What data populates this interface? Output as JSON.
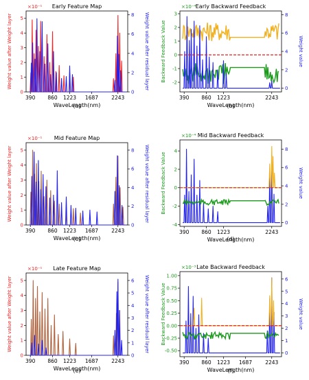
{
  "figure": {
    "captions": [
      "(a)",
      "(b)",
      "(c)",
      "(d)",
      "(e)",
      "(f)"
    ]
  },
  "colors": {
    "red": "#ee2222",
    "blue": "#2222ee",
    "brown": "#b0603a",
    "orange": "#f0b020",
    "green": "#1a9a1a",
    "dashed": "#dd2222",
    "pinkfill": "#f2b8e6",
    "greenfill": "#9fe39f",
    "bluefill": "#6a6af0"
  },
  "chart_data": [
    {
      "type": "line",
      "title": "Early Feature Map",
      "scale_label": "×10⁻¹",
      "xlabel": "WaveLength(nm)",
      "ylabel": "Weight value after Weight layer",
      "ylabel_right": "Weight value after residual layer",
      "xticks": [
        "390",
        "860",
        "1223",
        "1687",
        "2243"
      ],
      "yticks_left": [
        "0",
        "1",
        "2",
        "3",
        "4",
        "5"
      ],
      "yticks_right": [
        "0",
        "2",
        "4",
        "6",
        "8"
      ],
      "ylim": [
        0,
        5.5
      ],
      "ylim_right": [
        0,
        8.4
      ],
      "series": [
        {
          "role": "weight-layer",
          "color_key": "red",
          "style": "line",
          "peaks": [
            [
              400,
              1.3
            ],
            [
              430,
              4.9
            ],
            [
              470,
              2.6
            ],
            [
              510,
              4.2
            ],
            [
              560,
              3.1
            ],
            [
              610,
              4.8
            ],
            [
              680,
              2.4
            ],
            [
              740,
              3.9
            ],
            [
              800,
              2.0
            ],
            [
              860,
              4.1
            ],
            [
              930,
              1.4
            ],
            [
              1000,
              1.8
            ],
            [
              1100,
              1.1
            ],
            [
              1223,
              1.3
            ],
            [
              1300,
              1.0
            ],
            [
              2150,
              0.9
            ],
            [
              2200,
              2.6
            ],
            [
              2243,
              5.2
            ],
            [
              2280,
              4.0
            ],
            [
              2320,
              2.1
            ]
          ]
        },
        {
          "role": "residual-layer",
          "color_key": "blue",
          "style": "line",
          "peaks": [
            [
              410,
              3.0
            ],
            [
              440,
              5.1
            ],
            [
              490,
              3.4
            ],
            [
              530,
              7.6
            ],
            [
              590,
              4.2
            ],
            [
              640,
              7.3
            ],
            [
              700,
              2.9
            ],
            [
              760,
              5.0
            ],
            [
              820,
              1.8
            ],
            [
              880,
              4.2
            ],
            [
              940,
              2.0
            ],
            [
              1050,
              1.4
            ],
            [
              1150,
              1.6
            ],
            [
              1223,
              2.7
            ],
            [
              1280,
              1.8
            ],
            [
              2180,
              1.2
            ],
            [
              2230,
              5.8
            ],
            [
              2260,
              3.9
            ],
            [
              2300,
              2.2
            ]
          ]
        }
      ]
    },
    {
      "type": "line",
      "title": "Early Backward Feedback",
      "scale_label": "×10⁻⁴",
      "xlabel": "WaveLength(nm)",
      "ylabel": "Backward Feedback Value",
      "ylabel_right": "Weight value",
      "xticks": [
        "390",
        "860",
        "1223",
        "2243"
      ],
      "yticks_left": [
        "-2",
        "-1",
        "0",
        "1",
        "2",
        "3"
      ],
      "yticks_right": [
        "0",
        "2",
        "4",
        "6",
        "8"
      ],
      "ylim": [
        -2.7,
        3.2
      ],
      "ylim_right": [
        -0.4,
        8.4
      ],
      "reference_line": 0,
      "series": [
        {
          "role": "positive-feedback",
          "color_key": "orange",
          "style": "band",
          "base": 1.0,
          "amp": 1.4
        },
        {
          "role": "negative-feedback",
          "color_key": "green",
          "style": "band",
          "base": -0.6,
          "amp": -1.6
        },
        {
          "role": "weight",
          "color_key": "blue",
          "style": "line",
          "peaks": [
            [
              400,
              4.0
            ],
            [
              450,
              7.8
            ],
            [
              500,
              5.2
            ],
            [
              540,
              6.4
            ],
            [
              600,
              7.3
            ],
            [
              660,
              4.6
            ],
            [
              720,
              6.8
            ],
            [
              780,
              3.1
            ],
            [
              860,
              5.6
            ],
            [
              920,
              3.4
            ],
            [
              1000,
              2.8
            ],
            [
              1100,
              2.0
            ],
            [
              1223,
              3.0
            ],
            [
              1280,
              1.6
            ],
            [
              2200,
              0.6
            ],
            [
              2243,
              0.8
            ]
          ]
        }
      ]
    },
    {
      "type": "line",
      "title": "Mid Feature Map",
      "scale_label": "×10⁻¹",
      "xlabel": "WaveLength(nm)",
      "ylabel": "Weight value after Weight layer",
      "ylabel_right": "Weight value after residual layer",
      "xticks": [
        "390",
        "860",
        "1223",
        "1687",
        "2243"
      ],
      "yticks_left": [
        "0",
        "1",
        "2",
        "3",
        "4",
        "5"
      ],
      "yticks_right": [
        "0",
        "2",
        "4",
        "6",
        "8"
      ],
      "ylim": [
        0,
        5.5
      ],
      "ylim_right": [
        0,
        8.8
      ],
      "series": [
        {
          "role": "weight-layer",
          "color_key": "brown",
          "style": "line",
          "peaks": [
            [
              400,
              2.2
            ],
            [
              440,
              5.0
            ],
            [
              480,
              3.4
            ],
            [
              520,
              4.1
            ],
            [
              570,
              2.9
            ],
            [
              620,
              3.6
            ],
            [
              680,
              1.9
            ],
            [
              740,
              3.0
            ],
            [
              820,
              2.3
            ],
            [
              900,
              1.6
            ],
            [
              1000,
              1.4
            ],
            [
              1150,
              0.9
            ],
            [
              1300,
              1.1
            ],
            [
              1450,
              0.8
            ],
            [
              2150,
              1.4
            ],
            [
              2200,
              3.2
            ],
            [
              2243,
              4.6
            ],
            [
              2290,
              2.5
            ],
            [
              2350,
              1.2
            ]
          ]
        },
        {
          "role": "residual-layer",
          "color_key": "blue",
          "style": "line",
          "peaks": [
            [
              420,
              5.2
            ],
            [
              470,
              7.8
            ],
            [
              510,
              4.6
            ],
            [
              560,
              6.9
            ],
            [
              610,
              3.8
            ],
            [
              660,
              5.4
            ],
            [
              720,
              4.1
            ],
            [
              800,
              2.9
            ],
            [
              880,
              3.2
            ],
            [
              960,
              5.8
            ],
            [
              1050,
              2.4
            ],
            [
              1150,
              3.0
            ],
            [
              1250,
              2.1
            ],
            [
              1350,
              1.8
            ],
            [
              1500,
              1.5
            ],
            [
              1650,
              1.6
            ],
            [
              1800,
              1.4
            ],
            [
              2180,
              3.6
            ],
            [
              2230,
              7.4
            ],
            [
              2270,
              4.2
            ],
            [
              2330,
              2.1
            ]
          ]
        }
      ]
    },
    {
      "type": "line",
      "title": "Mid Backward Feedback",
      "scale_label": "×10⁻⁴",
      "xlabel": "WaveLength(nm)",
      "ylabel": "Backward Feedback Value",
      "ylabel_right": "Weight value",
      "xticks": [
        "390",
        "860",
        "1223",
        "2243"
      ],
      "yticks_left": [
        "-4",
        "-2",
        "0",
        "2",
        "4"
      ],
      "yticks_right": [
        "0",
        "2",
        "4",
        "6",
        "8"
      ],
      "ylim": [
        -4.2,
        5.2
      ],
      "ylim_right": [
        -0.4,
        9.0
      ],
      "reference_line": 0,
      "series": [
        {
          "role": "weight",
          "color_key": "blue",
          "style": "line",
          "peaks": [
            [
              400,
              3.0
            ],
            [
              440,
              8.0
            ],
            [
              490,
              3.4
            ],
            [
              540,
              5.2
            ],
            [
              600,
              6.9
            ],
            [
              660,
              3.0
            ],
            [
              720,
              4.6
            ],
            [
              800,
              2.2
            ],
            [
              900,
              1.5
            ],
            [
              1000,
              1.8
            ],
            [
              1100,
              1.2
            ],
            [
              2160,
              1.8
            ],
            [
              2200,
              5.5
            ],
            [
              2243,
              6.6
            ],
            [
              2290,
              3.1
            ]
          ]
        },
        {
          "role": "positive-feedback",
          "color_key": "orange",
          "style": "spikes",
          "peaks": [
            [
              2200,
              2.6
            ],
            [
              2243,
              4.5
            ],
            [
              2270,
              3.4
            ],
            [
              2300,
              1.6
            ]
          ]
        },
        {
          "role": "negative-feedback",
          "color_key": "green",
          "style": "band",
          "base": -1.3,
          "amp": -0.6
        }
      ]
    },
    {
      "type": "line",
      "title": "Late Feature Map",
      "scale_label": "×10⁻¹",
      "xlabel": "WaveLength(nm)",
      "ylabel": "Weight value after Weight layer",
      "ylabel_right": "Weight value after residual layer",
      "xticks": [
        "390",
        "860",
        "1223",
        "1687",
        "2243"
      ],
      "yticks_left": [
        "0",
        "1",
        "2",
        "3",
        "4",
        "5"
      ],
      "yticks_right": [
        "0",
        "1",
        "2",
        "3",
        "4",
        "5",
        "6"
      ],
      "ylim": [
        0,
        5.5
      ],
      "ylim_right": [
        0,
        6.6
      ],
      "series": [
        {
          "role": "weight-layer",
          "color_key": "brown",
          "style": "line",
          "peaks": [
            [
              410,
              2.4
            ],
            [
              450,
              5.0
            ],
            [
              500,
              3.8
            ],
            [
              540,
              4.6
            ],
            [
              590,
              2.9
            ],
            [
              640,
              4.2
            ],
            [
              700,
              3.1
            ],
            [
              760,
              3.8
            ],
            [
              830,
              2.0
            ],
            [
              900,
              2.7
            ],
            [
              980,
              1.4
            ],
            [
              1080,
              1.6
            ],
            [
              1223,
              1.1
            ],
            [
              1350,
              0.8
            ],
            [
              2150,
              1.3
            ],
            [
              2210,
              2.8
            ],
            [
              2243,
              4.9
            ],
            [
              2280,
              3.0
            ]
          ]
        },
        {
          "role": "residual-layer",
          "color_key": "blue",
          "style": "line",
          "peaks": [
            [
              420,
              1.0
            ],
            [
              480,
              1.6
            ],
            [
              560,
              0.9
            ],
            [
              640,
              1.2
            ],
            [
              720,
              0.6
            ],
            [
              2180,
              2.0
            ],
            [
              2220,
              5.1
            ],
            [
              2243,
              6.1
            ],
            [
              2275,
              3.6
            ],
            [
              2320,
              1.2
            ]
          ]
        }
      ]
    },
    {
      "type": "line",
      "title": "Late Backward Feedback",
      "scale_label": "×10⁻³",
      "xlabel": "WaveLength(nm)",
      "ylabel": "Backward Feedback Value",
      "ylabel_right": "Weight value",
      "xticks": [
        "390",
        "860",
        "1223",
        "1687",
        "2243"
      ],
      "yticks_left": [
        "-0.50",
        "-0.25",
        "0.00",
        "0.25",
        "0.50",
        "0.75",
        "1.00"
      ],
      "yticks_right": [
        "0",
        "1",
        "2",
        "3",
        "4",
        "5",
        "6"
      ],
      "ylim": [
        -0.62,
        1.08
      ],
      "ylim_right": [
        -0.3,
        6.6
      ],
      "reference_line": 0,
      "series": [
        {
          "role": "weight",
          "color_key": "blue",
          "style": "line",
          "peaks": [
            [
              430,
              2.6
            ],
            [
              480,
              5.4
            ],
            [
              530,
              3.2
            ],
            [
              580,
              4.6
            ],
            [
              640,
              2.0
            ],
            [
              700,
              3.1
            ],
            [
              800,
              1.6
            ],
            [
              900,
              1.2
            ],
            [
              2150,
              1.8
            ],
            [
              2200,
              4.4
            ],
            [
              2243,
              6.1
            ],
            [
              2290,
              3.3
            ]
          ]
        },
        {
          "role": "positive-feedback",
          "color_key": "orange",
          "style": "spikes",
          "peaks": [
            [
              600,
              0.35
            ],
            [
              760,
              0.55
            ],
            [
              2200,
              0.6
            ],
            [
              2243,
              0.95
            ],
            [
              2280,
              0.5
            ]
          ]
        },
        {
          "role": "negative-feedback",
          "color_key": "green",
          "style": "band",
          "base": -0.12,
          "amp": -0.16
        }
      ]
    }
  ]
}
